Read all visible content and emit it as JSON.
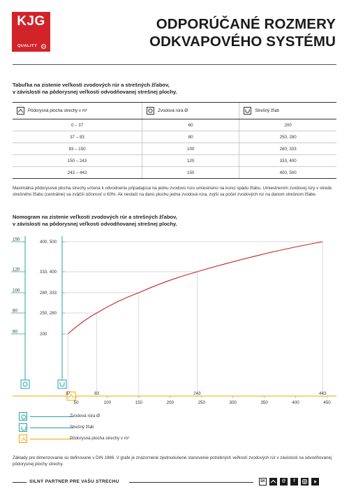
{
  "logo": {
    "brand": "KJG",
    "tagline": "QUALITY",
    "reg": "R"
  },
  "title": {
    "line1": "ODPORÚČANÉ ROZMERY",
    "line2": "ODKVAPOVÉHO SYSTÉMU"
  },
  "intro": {
    "line1": "Tabuľka na zistenie veľkosti zvodových rúr a strešných žľabov,",
    "line2": "v závislosti na pôdorysnej veľkosti odvodňovanej strešnej plochy."
  },
  "table": {
    "headers": [
      "Pôdorysná plocha strechy v m²",
      "Zvodová rúra Ø",
      "Strešný žľab"
    ],
    "header_icons": [
      "roof-area-icon",
      "downpipe-icon",
      "gutter-icon"
    ],
    "rows": [
      [
        "0 – 37",
        "60",
        "200"
      ],
      [
        "37 – 83",
        "80",
        "250, 280"
      ],
      [
        "83 – 150",
        "100",
        "280, 333"
      ],
      [
        "150 – 243",
        "120",
        "333, 400"
      ],
      [
        "243 – 443",
        "150",
        "400, 500"
      ]
    ]
  },
  "note1": "Maximálna pôdorysová plocha strechy určená k odvodneniu pripadajúca na jednu zvodovú rúru umiestnenú na konci spádu žľabu. Umiestnením zvodovej rúry v strede strešného žľabu (centrálne) sa zväčší účinnosť o 60%. Ak nestačí na danú plochu jedna zvodová rúra, zvýši sa počet zvodových rúr na danom strešnom žľabe.",
  "nomogram": {
    "line1": "Nomogram na zistenie veľkosti zvodových rúr a strešných žľabov,",
    "line2": "v závislosti na pôdorysnej veľkosti odvodňovanej strešnej plochy."
  },
  "chart_data": {
    "type": "line",
    "x_axis_ticks": [
      "50",
      "100",
      "150",
      "200",
      "250",
      "300",
      "350",
      "400",
      "450"
    ],
    "x_breakpoint_labels": [
      "37",
      "83",
      "243",
      "443"
    ],
    "downpipe_ticks": [
      "150",
      "120",
      "100",
      "80",
      "60"
    ],
    "gutter_ticks": [
      "400, 500",
      "333, 400",
      "280, 333",
      "250, 280",
      "200"
    ],
    "x_range": [
      20,
      455
    ],
    "series": [
      {
        "values": [
          [
            37,
            60
          ],
          [
            83,
            80
          ],
          [
            150,
            100
          ],
          [
            243,
            120
          ],
          [
            443,
            150
          ]
        ]
      }
    ],
    "colors": {
      "downpipe": "#23a3a8",
      "gutter": "#23a3a8",
      "area": "#f0a500",
      "curve": "#c8252b",
      "grid": "#cccccc"
    }
  },
  "legend": [
    {
      "label": "Zvodová rúra Ø",
      "icon": "downpipe-icon",
      "color": "#23a3a8"
    },
    {
      "label": "Strešný žľab",
      "icon": "gutter-icon",
      "color": "#23a3a8"
    },
    {
      "label": "Pôdorysná plocha strechy v m²",
      "icon": "roof-area-icon",
      "color": "#f0a500"
    }
  ],
  "note2": "Základy pre dimenzovanie sú definované v DIN 1986. V grafe je znázornené zjednodušené stanovenie potrebných veľkostí zvodových rúr v závislosti na odvodňovanej pôdorysnej plochy strechy.",
  "footer": {
    "slogan": "SILNÝ PARTNER PRE VAŠU STRECHU",
    "lang": "SK",
    "social": [
      "mail-icon",
      "facebook-icon",
      "instagram-icon",
      "youtube-icon"
    ]
  }
}
